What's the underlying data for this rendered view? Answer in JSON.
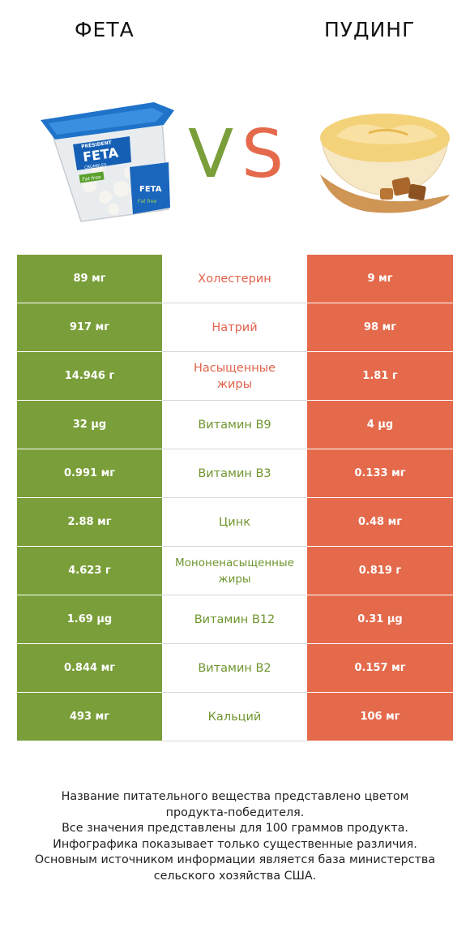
{
  "header": {
    "left_title": "ФЕТА",
    "right_title": "ПУДИНГ",
    "vs_text": "VS"
  },
  "colors": {
    "winner_left": "#7a9e39",
    "winner_right": "#e46a4b"
  },
  "rows": [
    {
      "left": "89 мг",
      "label": "Холестерин",
      "right": "9 мг",
      "winner": "right"
    },
    {
      "left": "917 мг",
      "label": "Натрий",
      "right": "98 мг",
      "winner": "right"
    },
    {
      "left": "14.946 г",
      "label": "Насыщенные жиры",
      "right": "1.81 г",
      "winner": "right"
    },
    {
      "left": "32 µg",
      "label": "Витамин B9",
      "right": "4 µg",
      "winner": "left"
    },
    {
      "left": "0.991 мг",
      "label": "Витамин B3",
      "right": "0.133 мг",
      "winner": "left"
    },
    {
      "left": "2.88 мг",
      "label": "Цинк",
      "right": "0.48 мг",
      "winner": "left"
    },
    {
      "left": "4.623 г",
      "label": "Мононенасыщенные жиры",
      "right": "0.819 г",
      "winner": "left"
    },
    {
      "left": "1.69 µg",
      "label": "Витамин B12",
      "right": "0.31 µg",
      "winner": "left"
    },
    {
      "left": "0.844 мг",
      "label": "Витамин B2",
      "right": "0.157 мг",
      "winner": "left"
    },
    {
      "left": "493 мг",
      "label": "Кальций",
      "right": "106 мг",
      "winner": "left"
    }
  ],
  "footer": {
    "line1": "Название питательного вещества представлено цветом",
    "line2": "продукта-победителя.",
    "line3": "Все значения представлены для 100 граммов продукта.",
    "line4": "Инфографика показывает только существенные различия.",
    "line5": "Основным источником информации является база министерства",
    "line6": "сельского хозяйства США."
  },
  "feta_logo": {
    "brand": "PRÉSIDENT",
    "product": "FETA",
    "sub": "CRUMBLES",
    "badge": "Fat free"
  }
}
